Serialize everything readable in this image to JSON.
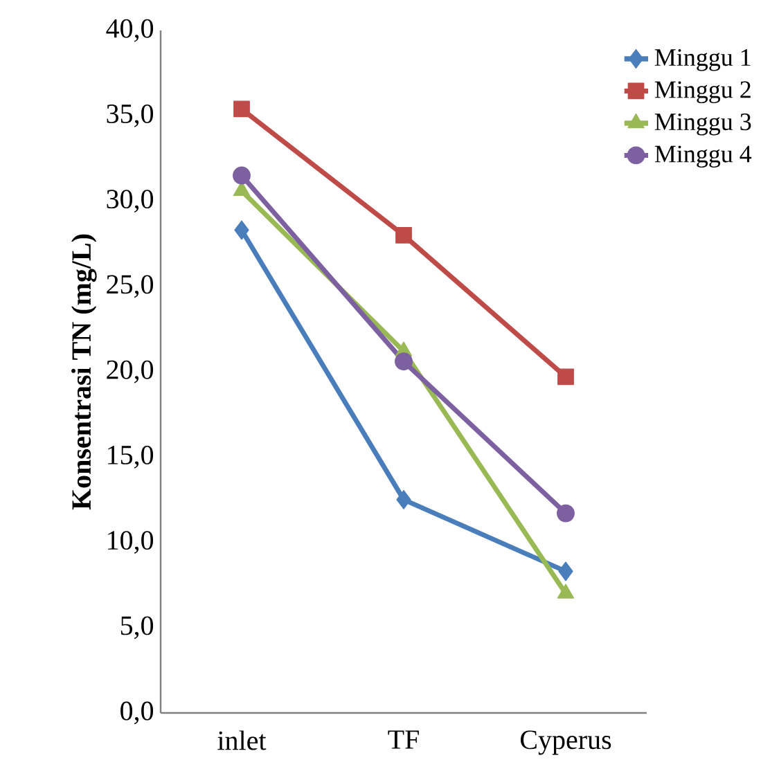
{
  "chart_data": {
    "type": "line",
    "ylabel": "Konsentrasi TN (mg/L)",
    "categories": [
      "inlet",
      "TF",
      "Cyperus"
    ],
    "series": [
      {
        "name": "Minggu 1",
        "color": "#4a7ebb",
        "marker": "diamond",
        "values": [
          28.3,
          12.5,
          8.3
        ]
      },
      {
        "name": "Minggu 2",
        "color": "#be4b48",
        "marker": "square",
        "values": [
          35.4,
          28.0,
          19.7
        ]
      },
      {
        "name": "Minggu 3",
        "color": "#98b954",
        "marker": "triangle",
        "values": [
          30.6,
          21.2,
          7.0
        ]
      },
      {
        "name": "Minggu 4",
        "color": "#7d60a0",
        "marker": "circle",
        "values": [
          31.5,
          20.6,
          11.7
        ]
      }
    ],
    "ylim": [
      0,
      40
    ],
    "yticks": [
      {
        "value": 0,
        "label": "0,0"
      },
      {
        "value": 5,
        "label": "5,0"
      },
      {
        "value": 10,
        "label": "10,0"
      },
      {
        "value": 15,
        "label": "15,0"
      },
      {
        "value": 20,
        "label": "20,0"
      },
      {
        "value": 25,
        "label": "25,0"
      },
      {
        "value": 30,
        "label": "30,0"
      },
      {
        "value": 35,
        "label": "35,0"
      },
      {
        "value": 40,
        "label": "40,0"
      }
    ],
    "legend": "top right",
    "grid": false,
    "line_style": "solid"
  }
}
